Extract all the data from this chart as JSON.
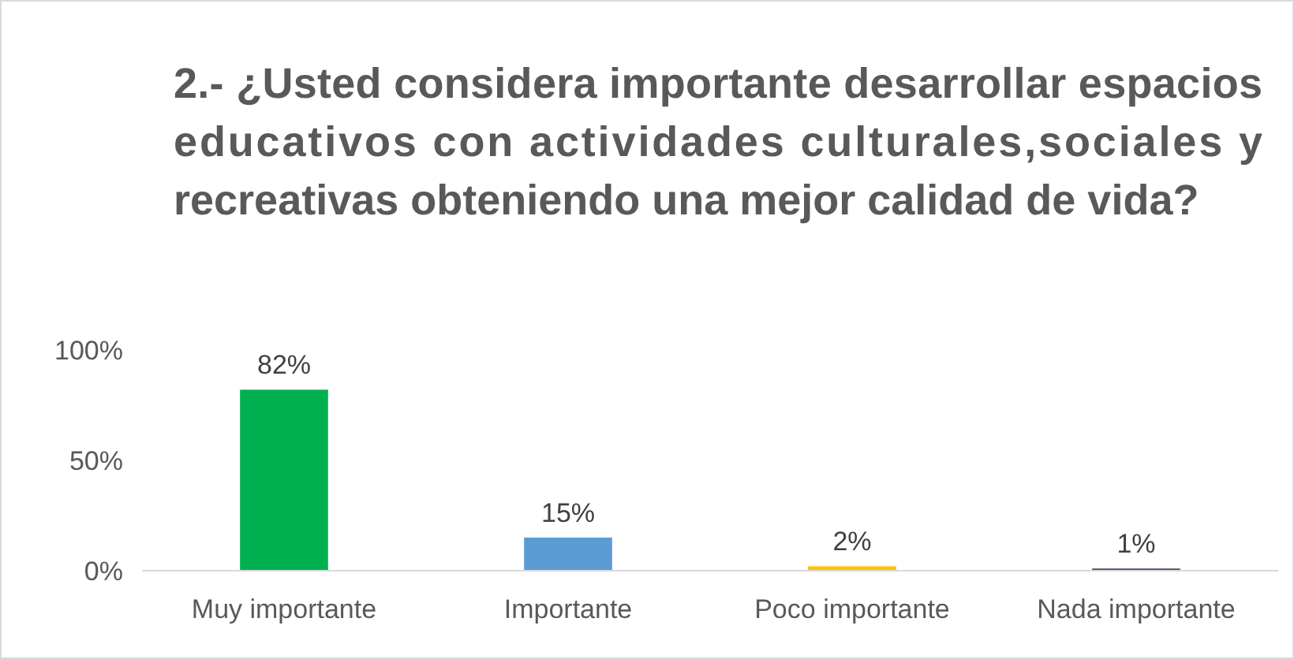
{
  "chart_data": {
    "type": "bar",
    "title": "2.- ¿Usted considera importante desarrollar espacios educativos con actividades culturales,sociales y recreativas obteniendo una mejor calidad de vida?",
    "categories": [
      "Muy importante",
      "Importante",
      "Poco importante",
      "Nada importante"
    ],
    "values": [
      82,
      15,
      2,
      1
    ],
    "colors": [
      "#00b050",
      "#5b9bd5",
      "#ffc000",
      "#44546a"
    ],
    "value_labels": [
      "82%",
      "15%",
      "2%",
      "1%"
    ],
    "ylim": [
      0,
      100
    ],
    "yticks": [
      {
        "value": 0,
        "label": "0%"
      },
      {
        "value": 50,
        "label": "50%"
      },
      {
        "value": 100,
        "label": "100%"
      }
    ],
    "grid": false
  }
}
